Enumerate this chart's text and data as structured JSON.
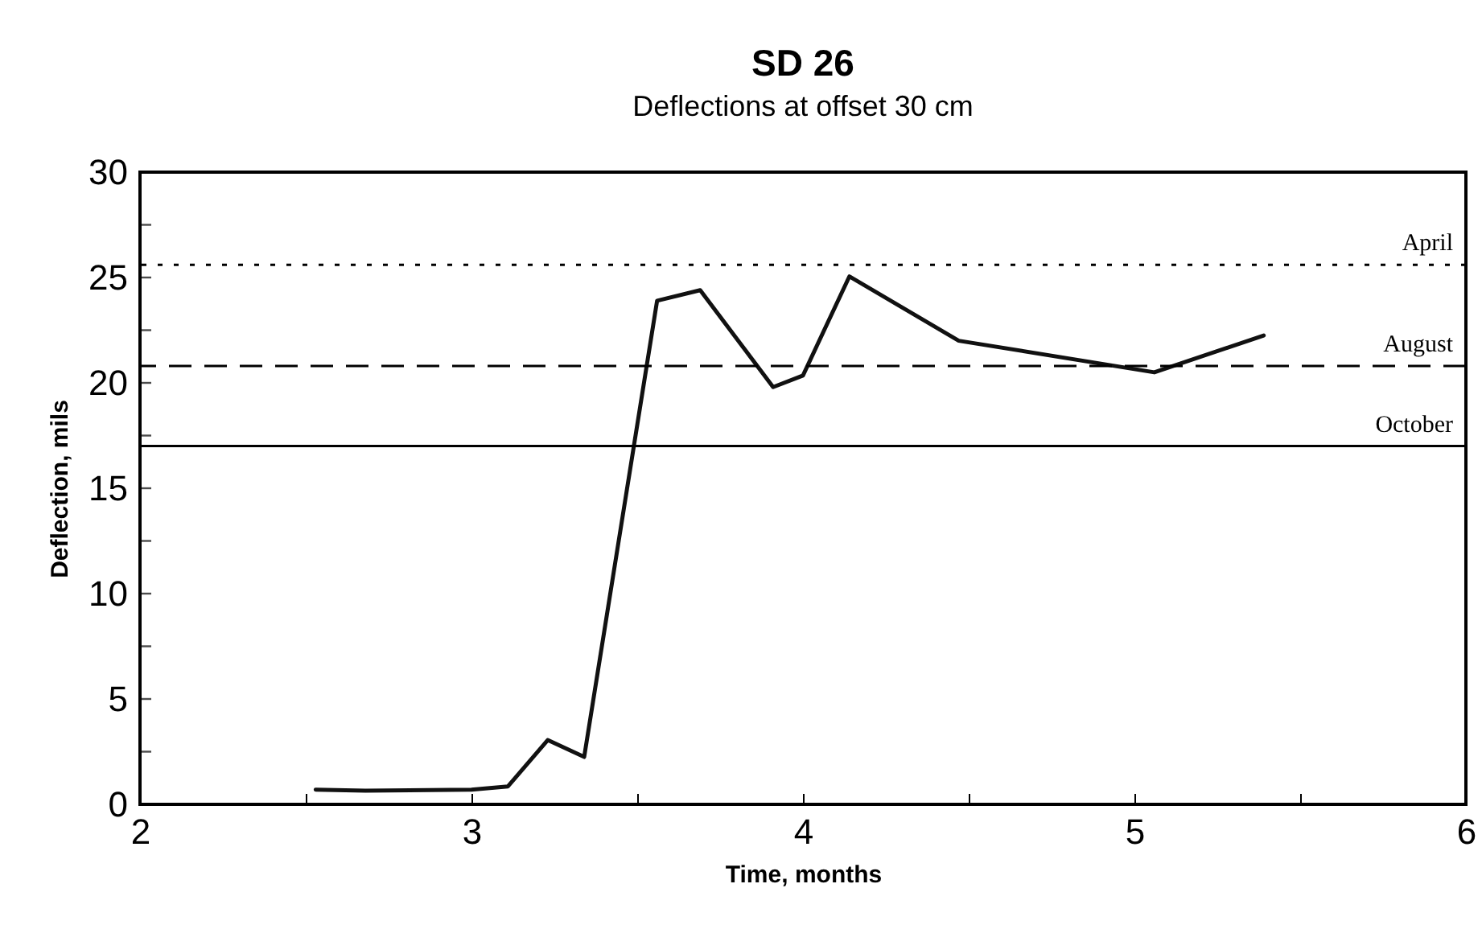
{
  "chart_data": {
    "type": "line",
    "title": "SD 26",
    "subtitle": "Deflections at offset 30 cm",
    "xlabel": "Time, months",
    "ylabel": "Deflection, mils",
    "x": [
      2.53,
      2.68,
      3.0,
      3.11,
      3.23,
      3.34,
      3.56,
      3.69,
      3.91,
      4.0,
      4.14,
      4.47,
      5.06,
      5.39
    ],
    "series": [
      {
        "color": "#111111",
        "values": [
          0.7,
          0.65,
          0.7,
          0.85,
          3.05,
          2.25,
          23.9,
          24.4,
          19.8,
          20.35,
          25.05,
          22.0,
          20.5,
          22.25
        ]
      }
    ],
    "xlim": [
      2,
      6
    ],
    "xticks": [
      2,
      {
        "value": 2.5,
        "label": null
      },
      3,
      {
        "value": 3.5,
        "label": null
      },
      4,
      {
        "value": 4.5,
        "label": null
      },
      5,
      {
        "value": 5.5,
        "label": null
      },
      6
    ],
    "ylim": [
      0,
      30
    ],
    "yticks": [
      0,
      {
        "value": 2.5,
        "label": null
      },
      5,
      {
        "value": 7.5,
        "label": null
      },
      10,
      {
        "value": 12.5,
        "label": null
      },
      15,
      {
        "value": 17.5,
        "label": null
      },
      20,
      {
        "value": 22.5,
        "label": null
      },
      25,
      {
        "value": 27.5,
        "label": null
      },
      30
    ],
    "ref_lines": [
      {
        "axis": "y",
        "value": 25.6,
        "label": "April",
        "line_style": "dotted"
      },
      {
        "axis": "y",
        "value": 20.8,
        "label": "August",
        "line_style": "dashed"
      },
      {
        "axis": "y",
        "value": 17.0,
        "label": "October",
        "line_style": "solid"
      }
    ],
    "grid": false,
    "marker": "none",
    "line_style": "solid"
  }
}
